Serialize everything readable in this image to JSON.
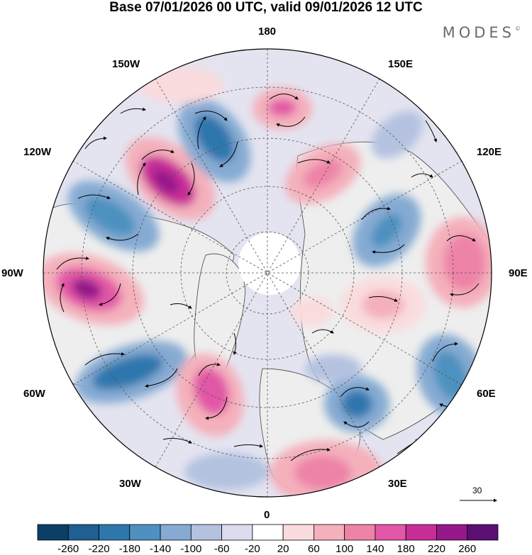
{
  "title": "Base 07/01/2026 00 UTC, valid 09/01/2026 12 UTC",
  "brand": "MODES",
  "brand_mark": "©",
  "longitude_labels": {
    "top": "180",
    "top_left": "150W",
    "top_right": "150E",
    "upper_left": "120W",
    "upper_right": "120E",
    "left": "90W",
    "right": "90E",
    "lower_left": "60W",
    "lower_right": "60E",
    "bottom_left": "30W",
    "bottom_right": "30E",
    "bottom": "0"
  },
  "vector_key": {
    "label": "30"
  },
  "colorbar": {
    "ticks": [
      "-260",
      "-220",
      "-180",
      "-140",
      "-100",
      "-60",
      "-20",
      "20",
      "60",
      "100",
      "140",
      "180",
      "220",
      "260"
    ],
    "colors": [
      "#0b3f66",
      "#1f5f92",
      "#2e77ad",
      "#4e91c0",
      "#86abd3",
      "#b4c2e0",
      "#dcdcef",
      "#ffffff",
      "#fadcde",
      "#f4b0bb",
      "#ee83a8",
      "#e257a6",
      "#c72d97",
      "#96188b",
      "#5b0f73"
    ]
  },
  "colors": {
    "land": "#eeeeee",
    "coast": "#444444",
    "grid": "#555555"
  }
}
